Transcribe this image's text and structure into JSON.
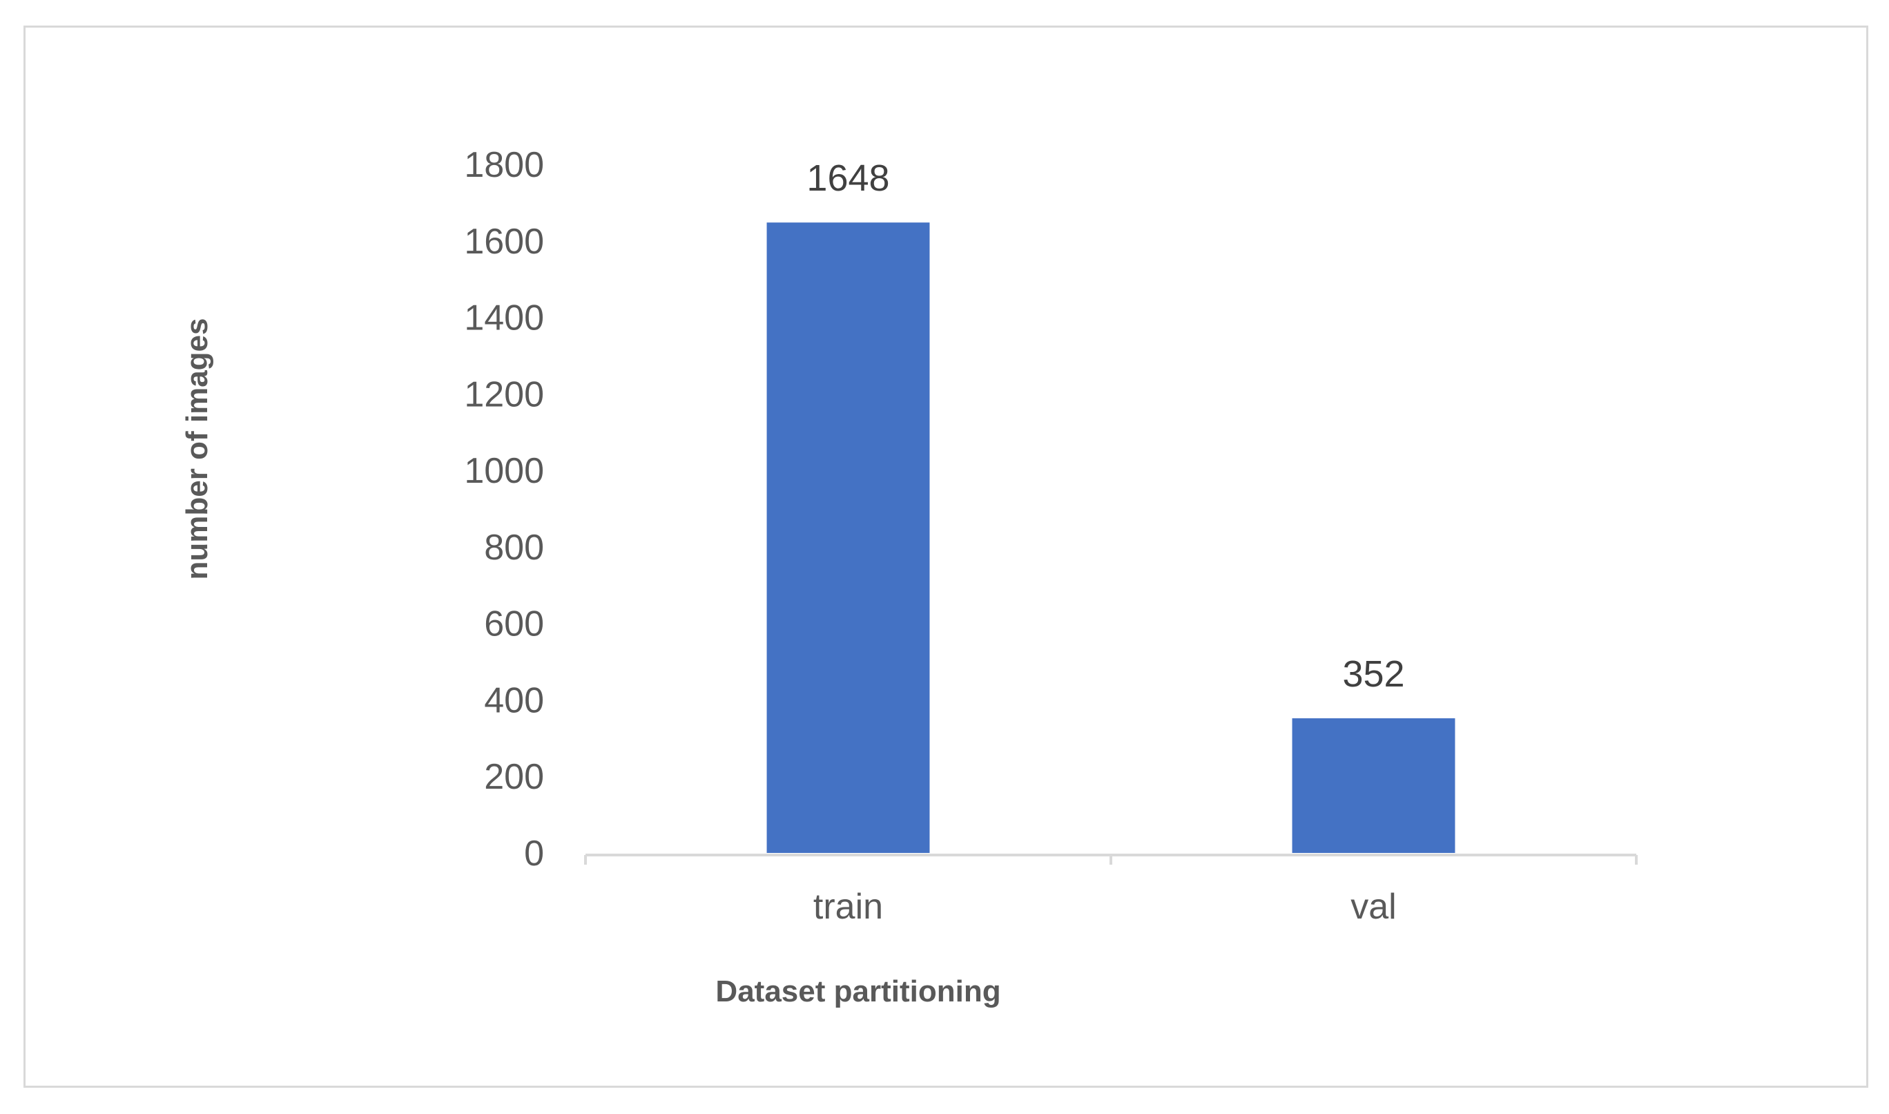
{
  "chart_data": {
    "type": "bar",
    "categories": [
      "train",
      "val"
    ],
    "values": [
      1648,
      352
    ],
    "title": "",
    "xlabel": "Dataset partitioning",
    "ylabel": "number of images",
    "ylim": [
      0,
      1800
    ],
    "yticks": [
      0,
      200,
      400,
      600,
      800,
      1000,
      1200,
      1400,
      1600,
      1800
    ],
    "data_labels": [
      "1648",
      "352"
    ],
    "grid": false,
    "legend": "none",
    "bar_color": "#4472C4",
    "text_color": "#595959",
    "data_label_color": "#404040",
    "axis_color": "#d9d9d9",
    "border_color": "#d9d9d9"
  }
}
